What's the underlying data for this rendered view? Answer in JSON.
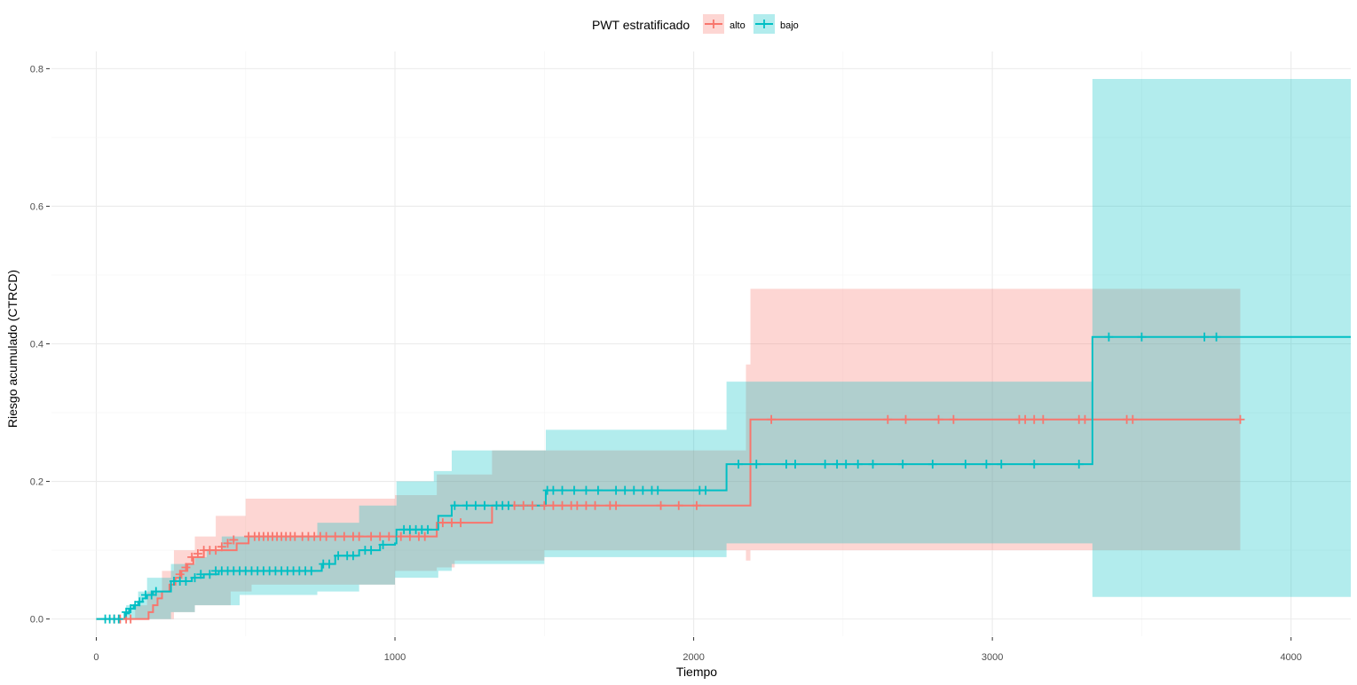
{
  "chart_data": {
    "type": "line",
    "xlabel": "Tiempo",
    "ylabel": "Riesgo acumulado (CTRCD)",
    "xlim": [
      -150,
      4200
    ],
    "ylim": [
      -0.025,
      0.825
    ],
    "x_ticks": [
      0,
      1000,
      2000,
      3000,
      4000
    ],
    "x_tick_labels": [
      "0",
      "1000",
      "2000",
      "3000",
      "4000"
    ],
    "y_ticks": [
      0.0,
      0.2,
      0.4,
      0.6,
      0.8
    ],
    "y_tick_labels": [
      "0.0",
      "0.2",
      "0.4",
      "0.6",
      "0.8"
    ],
    "grid": true,
    "legend": {
      "title": "PWT estratificado",
      "position": "top",
      "entries": [
        "alto",
        "bajo"
      ]
    },
    "series": [
      {
        "name": "alto",
        "color": "#F8766D",
        "fill": "#F8766D",
        "steps": [
          [
            0,
            0
          ],
          [
            160,
            0
          ],
          [
            175,
            0.01
          ],
          [
            190,
            0.02
          ],
          [
            205,
            0.03
          ],
          [
            220,
            0.04
          ],
          [
            245,
            0.05
          ],
          [
            265,
            0.06
          ],
          [
            285,
            0.07
          ],
          [
            305,
            0.08
          ],
          [
            325,
            0.09
          ],
          [
            360,
            0.1
          ],
          [
            470,
            0.11
          ],
          [
            510,
            0.12
          ],
          [
            1000,
            0.12
          ],
          [
            1140,
            0.14
          ],
          [
            1325,
            0.165
          ],
          [
            2175,
            0.165
          ],
          [
            2190,
            0.29
          ],
          [
            3830,
            0.29
          ]
        ],
        "ci_lower": [
          [
            0,
            0
          ],
          [
            200,
            0
          ],
          [
            260,
            0.01
          ],
          [
            330,
            0.02
          ],
          [
            450,
            0.04
          ],
          [
            520,
            0.05
          ],
          [
            1000,
            0.07
          ],
          [
            1140,
            0.075
          ],
          [
            1200,
            0.085
          ],
          [
            1500,
            0.1
          ],
          [
            2175,
            0.085
          ],
          [
            2190,
            0.1
          ],
          [
            3830,
            0.1
          ]
        ],
        "ci_upper": [
          [
            0,
            0
          ],
          [
            130,
            0.02
          ],
          [
            170,
            0.04
          ],
          [
            220,
            0.07
          ],
          [
            260,
            0.1
          ],
          [
            330,
            0.12
          ],
          [
            400,
            0.15
          ],
          [
            500,
            0.175
          ],
          [
            1000,
            0.18
          ],
          [
            1140,
            0.21
          ],
          [
            1325,
            0.245
          ],
          [
            2175,
            0.37
          ],
          [
            2190,
            0.48
          ],
          [
            3830,
            0.48
          ]
        ],
        "censored": [
          [
            60,
            0
          ],
          [
            80,
            0
          ],
          [
            100,
            0
          ],
          [
            115,
            0
          ],
          [
            280,
            0.065
          ],
          [
            300,
            0.075
          ],
          [
            320,
            0.09
          ],
          [
            340,
            0.095
          ],
          [
            360,
            0.1
          ],
          [
            380,
            0.1
          ],
          [
            400,
            0.1
          ],
          [
            420,
            0.105
          ],
          [
            440,
            0.11
          ],
          [
            460,
            0.115
          ],
          [
            510,
            0.12
          ],
          [
            530,
            0.12
          ],
          [
            545,
            0.12
          ],
          [
            560,
            0.12
          ],
          [
            575,
            0.12
          ],
          [
            590,
            0.12
          ],
          [
            605,
            0.12
          ],
          [
            620,
            0.12
          ],
          [
            635,
            0.12
          ],
          [
            650,
            0.12
          ],
          [
            665,
            0.12
          ],
          [
            690,
            0.12
          ],
          [
            710,
            0.12
          ],
          [
            730,
            0.12
          ],
          [
            750,
            0.12
          ],
          [
            770,
            0.12
          ],
          [
            800,
            0.12
          ],
          [
            830,
            0.12
          ],
          [
            860,
            0.12
          ],
          [
            880,
            0.12
          ],
          [
            920,
            0.12
          ],
          [
            950,
            0.12
          ],
          [
            980,
            0.12
          ],
          [
            1020,
            0.12
          ],
          [
            1050,
            0.12
          ],
          [
            1080,
            0.12
          ],
          [
            1100,
            0.12
          ],
          [
            1160,
            0.14
          ],
          [
            1190,
            0.14
          ],
          [
            1220,
            0.14
          ],
          [
            1400,
            0.165
          ],
          [
            1430,
            0.165
          ],
          [
            1460,
            0.165
          ],
          [
            1500,
            0.165
          ],
          [
            1530,
            0.165
          ],
          [
            1560,
            0.165
          ],
          [
            1590,
            0.165
          ],
          [
            1610,
            0.165
          ],
          [
            1640,
            0.165
          ],
          [
            1670,
            0.165
          ],
          [
            1720,
            0.165
          ],
          [
            1740,
            0.165
          ],
          [
            1890,
            0.165
          ],
          [
            1950,
            0.165
          ],
          [
            2010,
            0.165
          ],
          [
            2260,
            0.29
          ],
          [
            2650,
            0.29
          ],
          [
            2710,
            0.29
          ],
          [
            2820,
            0.29
          ],
          [
            2870,
            0.29
          ],
          [
            3090,
            0.29
          ],
          [
            3110,
            0.29
          ],
          [
            3140,
            0.29
          ],
          [
            3170,
            0.29
          ],
          [
            3290,
            0.29
          ],
          [
            3310,
            0.29
          ],
          [
            3450,
            0.29
          ],
          [
            3470,
            0.29
          ],
          [
            3830,
            0.29
          ]
        ]
      },
      {
        "name": "bajo",
        "color": "#00BFC4",
        "fill": "#00BFC4",
        "steps": [
          [
            0,
            0
          ],
          [
            80,
            0
          ],
          [
            95,
            0.008
          ],
          [
            110,
            0.015
          ],
          [
            125,
            0.02
          ],
          [
            140,
            0.025
          ],
          [
            155,
            0.03
          ],
          [
            170,
            0.035
          ],
          [
            190,
            0.04
          ],
          [
            250,
            0.055
          ],
          [
            320,
            0.06
          ],
          [
            360,
            0.065
          ],
          [
            410,
            0.07
          ],
          [
            740,
            0.07
          ],
          [
            755,
            0.08
          ],
          [
            800,
            0.092
          ],
          [
            880,
            0.1
          ],
          [
            950,
            0.108
          ],
          [
            1000,
            0.11
          ],
          [
            1005,
            0.13
          ],
          [
            1130,
            0.13
          ],
          [
            1145,
            0.15
          ],
          [
            1190,
            0.165
          ],
          [
            1490,
            0.165
          ],
          [
            1505,
            0.187
          ],
          [
            2100,
            0.187
          ],
          [
            2110,
            0.225
          ],
          [
            3330,
            0.225
          ],
          [
            3335,
            0.41
          ],
          [
            4200,
            0.41
          ]
        ],
        "ci_lower": [
          [
            0,
            0
          ],
          [
            180,
            0
          ],
          [
            250,
            0.01
          ],
          [
            330,
            0.02
          ],
          [
            480,
            0.035
          ],
          [
            740,
            0.04
          ],
          [
            880,
            0.05
          ],
          [
            1000,
            0.06
          ],
          [
            1145,
            0.07
          ],
          [
            1190,
            0.08
          ],
          [
            1500,
            0.09
          ],
          [
            2110,
            0.11
          ],
          [
            3330,
            0.11
          ],
          [
            3335,
            0.032
          ],
          [
            4200,
            0.032
          ]
        ],
        "ci_upper": [
          [
            0,
            0
          ],
          [
            100,
            0.02
          ],
          [
            140,
            0.04
          ],
          [
            170,
            0.06
          ],
          [
            250,
            0.08
          ],
          [
            330,
            0.09
          ],
          [
            370,
            0.1
          ],
          [
            420,
            0.12
          ],
          [
            740,
            0.14
          ],
          [
            880,
            0.165
          ],
          [
            1005,
            0.2
          ],
          [
            1130,
            0.215
          ],
          [
            1190,
            0.245
          ],
          [
            1505,
            0.275
          ],
          [
            2110,
            0.345
          ],
          [
            3330,
            0.345
          ],
          [
            3335,
            0.785
          ],
          [
            4200,
            0.785
          ]
        ],
        "censored": [
          [
            30,
            0
          ],
          [
            45,
            0
          ],
          [
            60,
            0
          ],
          [
            75,
            0
          ],
          [
            100,
            0.01
          ],
          [
            115,
            0.015
          ],
          [
            130,
            0.02
          ],
          [
            145,
            0.025
          ],
          [
            165,
            0.035
          ],
          [
            185,
            0.035
          ],
          [
            200,
            0.04
          ],
          [
            260,
            0.055
          ],
          [
            280,
            0.055
          ],
          [
            300,
            0.055
          ],
          [
            330,
            0.06
          ],
          [
            350,
            0.065
          ],
          [
            380,
            0.065
          ],
          [
            400,
            0.07
          ],
          [
            420,
            0.07
          ],
          [
            440,
            0.07
          ],
          [
            460,
            0.07
          ],
          [
            480,
            0.07
          ],
          [
            500,
            0.07
          ],
          [
            520,
            0.07
          ],
          [
            540,
            0.07
          ],
          [
            560,
            0.07
          ],
          [
            580,
            0.07
          ],
          [
            600,
            0.07
          ],
          [
            620,
            0.07
          ],
          [
            640,
            0.07
          ],
          [
            660,
            0.07
          ],
          [
            680,
            0.07
          ],
          [
            700,
            0.07
          ],
          [
            720,
            0.07
          ],
          [
            760,
            0.08
          ],
          [
            780,
            0.08
          ],
          [
            810,
            0.092
          ],
          [
            840,
            0.092
          ],
          [
            860,
            0.092
          ],
          [
            900,
            0.1
          ],
          [
            920,
            0.1
          ],
          [
            960,
            0.108
          ],
          [
            1030,
            0.13
          ],
          [
            1050,
            0.13
          ],
          [
            1070,
            0.13
          ],
          [
            1090,
            0.13
          ],
          [
            1110,
            0.13
          ],
          [
            1200,
            0.165
          ],
          [
            1240,
            0.165
          ],
          [
            1270,
            0.165
          ],
          [
            1300,
            0.165
          ],
          [
            1340,
            0.165
          ],
          [
            1360,
            0.165
          ],
          [
            1380,
            0.165
          ],
          [
            1510,
            0.187
          ],
          [
            1530,
            0.187
          ],
          [
            1560,
            0.187
          ],
          [
            1600,
            0.187
          ],
          [
            1640,
            0.187
          ],
          [
            1680,
            0.187
          ],
          [
            1740,
            0.187
          ],
          [
            1770,
            0.187
          ],
          [
            1800,
            0.187
          ],
          [
            1830,
            0.187
          ],
          [
            1860,
            0.187
          ],
          [
            1880,
            0.187
          ],
          [
            2020,
            0.187
          ],
          [
            2040,
            0.187
          ],
          [
            2150,
            0.225
          ],
          [
            2210,
            0.225
          ],
          [
            2310,
            0.225
          ],
          [
            2340,
            0.225
          ],
          [
            2440,
            0.225
          ],
          [
            2480,
            0.225
          ],
          [
            2510,
            0.225
          ],
          [
            2550,
            0.225
          ],
          [
            2600,
            0.225
          ],
          [
            2700,
            0.225
          ],
          [
            2800,
            0.225
          ],
          [
            2910,
            0.225
          ],
          [
            2980,
            0.225
          ],
          [
            3030,
            0.225
          ],
          [
            3140,
            0.225
          ],
          [
            3290,
            0.225
          ],
          [
            3390,
            0.41
          ],
          [
            3500,
            0.41
          ],
          [
            3710,
            0.41
          ],
          [
            3750,
            0.41
          ]
        ]
      }
    ]
  }
}
